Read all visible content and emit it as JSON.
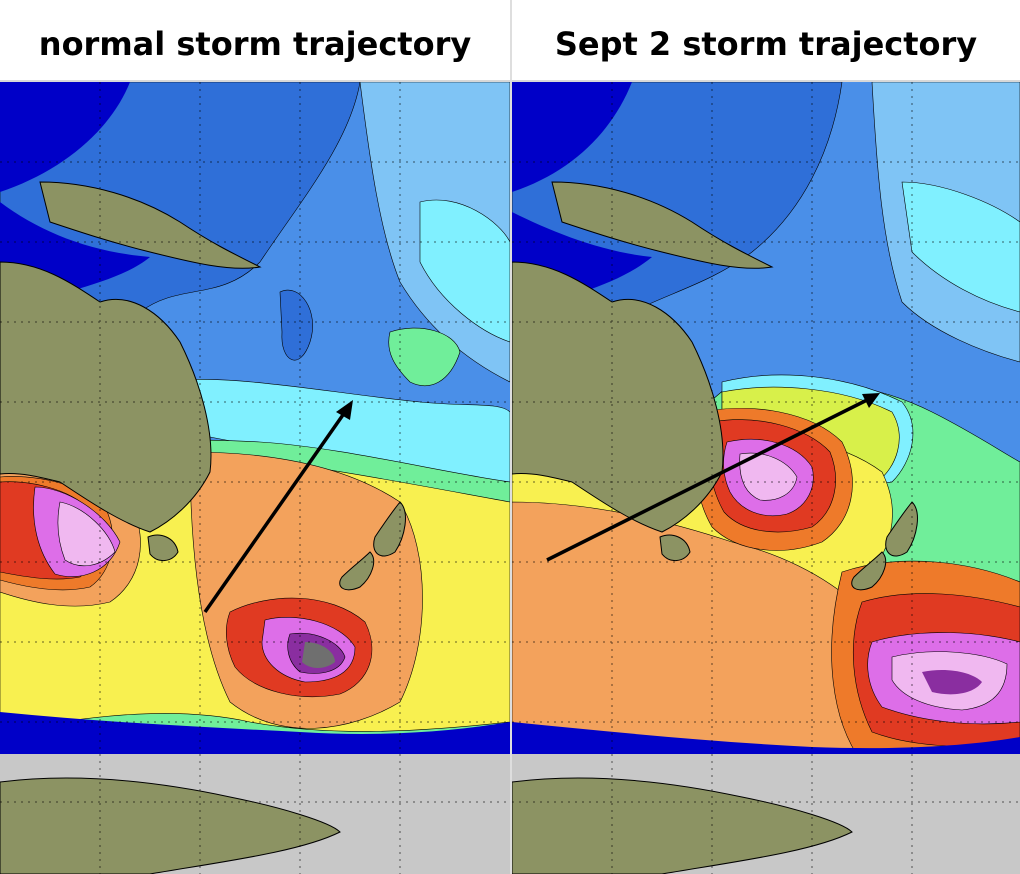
{
  "panels": [
    {
      "title": "normal storm trajectory",
      "arrow_icon": "trajectory-arrow-icon"
    },
    {
      "title": "Sept 2 storm trajectory",
      "arrow_icon": "trajectory-arrow-icon"
    }
  ],
  "colors": {
    "deep_blue": "#0000c8",
    "blue": "#2f6fd8",
    "mid_blue": "#4a8fe8",
    "light_blue": "#7fc4f5",
    "cyan": "#80f0ff",
    "green": "#70ee9a",
    "yellow_green": "#d8f04a",
    "yellow": "#f8f050",
    "orange": "#f3a25c",
    "dark_orange": "#ee7a2a",
    "red": "#e03a22",
    "magenta": "#dd6ee8",
    "pink": "#f0b8f0",
    "land": "#8c9363",
    "ice": "#c8c8c8",
    "arrow": "#000000"
  }
}
